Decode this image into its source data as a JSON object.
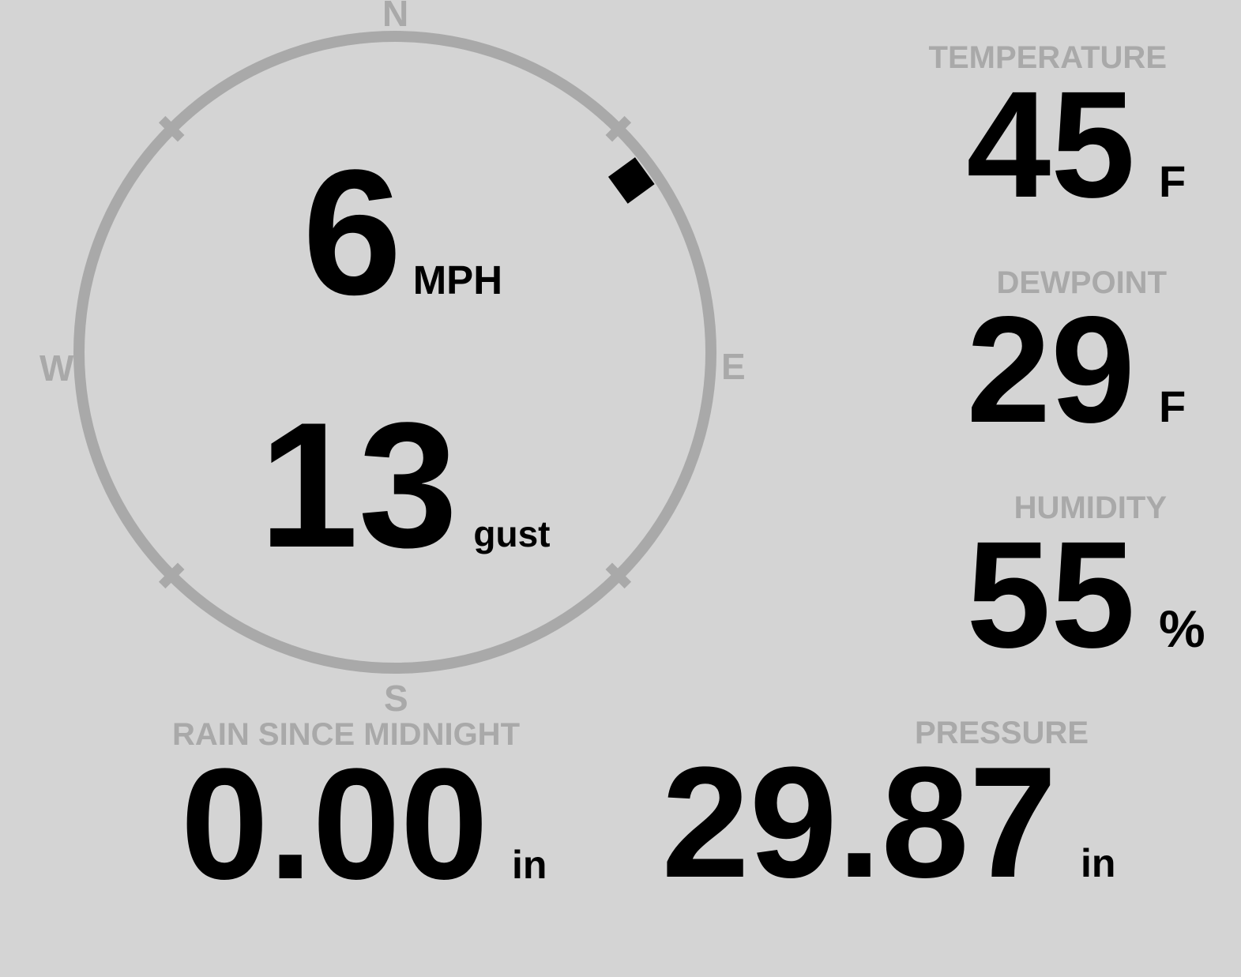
{
  "palette": {
    "background": "#d4d4d4",
    "muted": "#a9a9a9",
    "text": "#000000"
  },
  "compass": {
    "labels": {
      "north": "N",
      "east": "E",
      "south": "S",
      "west": "W"
    },
    "wind_speed": {
      "value": "6",
      "unit": "MPH"
    },
    "wind_gust": {
      "value": "13",
      "unit": "gust"
    },
    "direction_deg": 54
  },
  "metrics": [
    {
      "id": "temperature",
      "label": "TEMPERATURE",
      "value": "45",
      "unit": "F"
    },
    {
      "id": "dewpoint",
      "label": "DEWPOINT",
      "value": "29",
      "unit": "F"
    },
    {
      "id": "humidity",
      "label": "HUMIDITY",
      "value": "55",
      "unit": "%"
    },
    {
      "id": "rain_since_midnight",
      "label": "RAIN SINCE MIDNIGHT",
      "value": "0.00",
      "unit": "in"
    },
    {
      "id": "pressure",
      "label": "PRESSURE",
      "value": "29.87",
      "unit": "in"
    }
  ]
}
